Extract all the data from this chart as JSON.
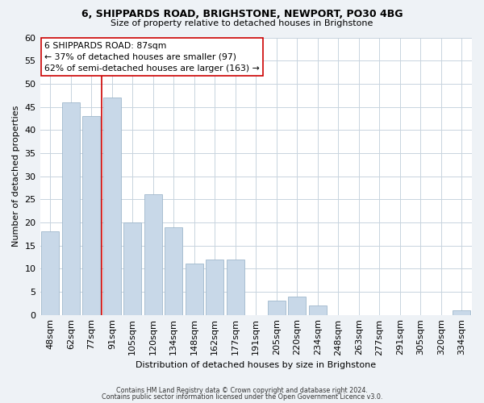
{
  "title": "6, SHIPPARDS ROAD, BRIGHSTONE, NEWPORT, PO30 4BG",
  "subtitle": "Size of property relative to detached houses in Brighstone",
  "xlabel": "Distribution of detached houses by size in Brighstone",
  "ylabel": "Number of detached properties",
  "bar_labels": [
    "48sqm",
    "62sqm",
    "77sqm",
    "91sqm",
    "105sqm",
    "120sqm",
    "134sqm",
    "148sqm",
    "162sqm",
    "177sqm",
    "191sqm",
    "205sqm",
    "220sqm",
    "234sqm",
    "248sqm",
    "263sqm",
    "277sqm",
    "291sqm",
    "305sqm",
    "320sqm",
    "334sqm"
  ],
  "bar_values": [
    18,
    46,
    43,
    47,
    20,
    26,
    19,
    11,
    12,
    12,
    0,
    3,
    4,
    2,
    0,
    0,
    0,
    0,
    0,
    0,
    1
  ],
  "bar_color": "#c8d8e8",
  "bar_edge_color": "#a0b8cc",
  "vline_color": "#cc0000",
  "vline_pos": 2.5,
  "ylim": [
    0,
    60
  ],
  "yticks": [
    0,
    5,
    10,
    15,
    20,
    25,
    30,
    35,
    40,
    45,
    50,
    55,
    60
  ],
  "annotation_title": "6 SHIPPARDS ROAD: 87sqm",
  "annotation_line1": "← 37% of detached houses are smaller (97)",
  "annotation_line2": "62% of semi-detached houses are larger (163) →",
  "footer_line1": "Contains HM Land Registry data © Crown copyright and database right 2024.",
  "footer_line2": "Contains public sector information licensed under the Open Government Licence v3.0.",
  "background_color": "#eef2f6",
  "plot_background_color": "#ffffff",
  "grid_color": "#c8d4de"
}
